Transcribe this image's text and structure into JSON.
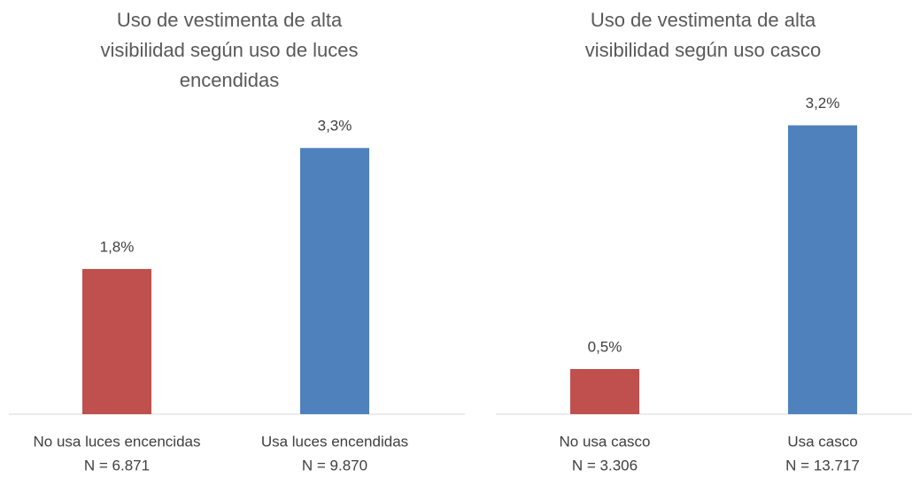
{
  "chart_data": [
    {
      "type": "bar",
      "title": "Uso de vestimenta de alta visibilidad según uso de luces encendidas",
      "categories": [
        [
          "No usa luces encencidas",
          "N = 6.871"
        ],
        [
          "Usa luces encendidas",
          "N = 9.870"
        ]
      ],
      "values": [
        1.8,
        3.3
      ],
      "value_labels": [
        "1,8%",
        "3,3%"
      ],
      "colors": [
        "#c0504d",
        "#4f81bd"
      ],
      "ylim": [
        0,
        3.5
      ]
    },
    {
      "type": "bar",
      "title": "Uso de vestimenta de alta visibilidad según uso casco",
      "categories": [
        [
          "No usa casco",
          "N = 3.306"
        ],
        [
          "Usa casco",
          "N = 13.717"
        ]
      ],
      "values": [
        0.5,
        3.2
      ],
      "value_labels": [
        "0,5%",
        "3,2%"
      ],
      "colors": [
        "#c0504d",
        "#4f81bd"
      ],
      "ylim": [
        0,
        3.5
      ]
    }
  ]
}
